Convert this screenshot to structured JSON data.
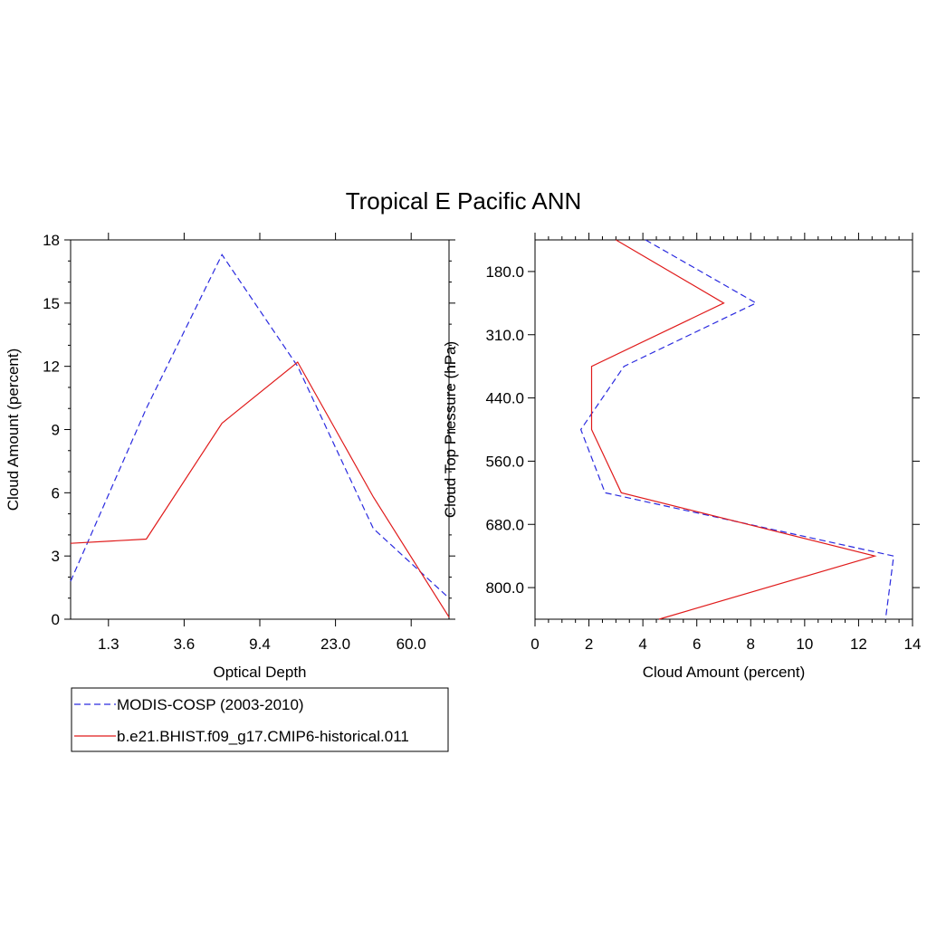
{
  "title": "Tropical E Pacific ANN",
  "colors": {
    "obs": "#2a2adf",
    "model": "#e01b1b",
    "frame": "#000000"
  },
  "legend": {
    "entries": [
      {
        "label": "MODIS-COSP (2003-2010)",
        "style": "dashed",
        "color": "#2a2adf"
      },
      {
        "label": "b.e21.BHIST.f09_g17.CMIP6-historical.011",
        "style": "solid",
        "color": "#e01b1b"
      }
    ]
  },
  "chart_data": [
    {
      "type": "line",
      "xlabel": "Optical Depth",
      "ylabel": "Cloud Amount (percent)",
      "x_tick_labels": [
        "1.3",
        "3.6",
        "9.4",
        "23.0",
        "60.0"
      ],
      "x_tick_positions": [
        1,
        3,
        5,
        7,
        9
      ],
      "x_range": [
        0,
        10
      ],
      "y_range": [
        0,
        18
      ],
      "y_ticks": [
        0,
        3,
        6,
        9,
        12,
        15,
        18
      ],
      "series": [
        {
          "name": "MODIS-COSP (2003-2010)",
          "style": "dashed",
          "color": "#2a2adf",
          "x": [
            0,
            2,
            4,
            6,
            8,
            10
          ],
          "y": [
            1.8,
            10.0,
            17.3,
            12.0,
            4.3,
            1.0
          ]
        },
        {
          "name": "b.e21.BHIST.f09_g17.CMIP6-historical.011",
          "style": "solid",
          "color": "#e01b1b",
          "x": [
            0,
            2,
            4,
            6,
            8,
            10
          ],
          "y": [
            3.6,
            3.8,
            9.3,
            12.2,
            5.8,
            0.1
          ]
        }
      ]
    },
    {
      "type": "line",
      "xlabel": "Cloud Amount (percent)",
      "ylabel": "Cloud Top Pressure (hPa)",
      "x_range": [
        0,
        14
      ],
      "x_ticks": [
        0,
        2,
        4,
        6,
        8,
        10,
        12,
        14
      ],
      "y_tick_labels": [
        "180.0",
        "310.0",
        "440.0",
        "560.0",
        "680.0",
        "800.0"
      ],
      "y_tick_positions": [
        1,
        3,
        5,
        7,
        9,
        11
      ],
      "y_range": [
        0,
        12
      ],
      "y_reversed": true,
      "series": [
        {
          "name": "MODIS-COSP (2003-2010)",
          "style": "dashed",
          "color": "#2a2adf",
          "x": [
            4.1,
            8.2,
            3.3,
            1.7,
            2.6,
            13.3,
            13.0
          ],
          "y": [
            0,
            2,
            4,
            6,
            8,
            10,
            12
          ]
        },
        {
          "name": "b.e21.BHIST.f09_g17.CMIP6-historical.011",
          "style": "solid",
          "color": "#e01b1b",
          "x": [
            3.0,
            7.0,
            2.1,
            2.1,
            3.2,
            12.6,
            4.6
          ],
          "y": [
            0,
            2,
            4,
            6,
            8,
            10,
            12
          ]
        }
      ]
    }
  ]
}
